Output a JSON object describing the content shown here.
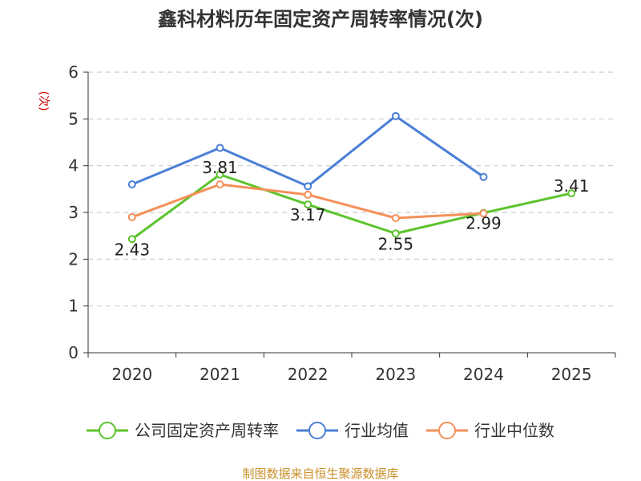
{
  "chart_data": {
    "type": "line",
    "title": "鑫科材料历年固定资产周转率情况(次)",
    "ylabel": "(次)",
    "ylim": [
      0,
      6
    ],
    "yticks": [
      0,
      1,
      2,
      3,
      4,
      5,
      6
    ],
    "categories": [
      "2020",
      "2021",
      "2022",
      "2023",
      "2024",
      "2025"
    ],
    "grid": true,
    "legend_position": "bottom",
    "series": [
      {
        "name": "公司固定资产周转率",
        "color": "#5cc32c",
        "values": [
          2.43,
          3.81,
          3.17,
          2.55,
          2.99,
          3.41
        ],
        "labels": [
          "2.43",
          "3.81",
          "3.17",
          "2.55",
          "2.99",
          "3.41"
        ]
      },
      {
        "name": "行业均值",
        "color": "#4a7fd6",
        "values": [
          3.6,
          4.38,
          3.56,
          5.06,
          3.76,
          null
        ]
      },
      {
        "name": "行业中位数",
        "color": "#f5905a",
        "values": [
          2.9,
          3.6,
          3.38,
          2.88,
          2.98,
          null
        ]
      }
    ]
  },
  "source": "制图数据来自恒生聚源数据库"
}
